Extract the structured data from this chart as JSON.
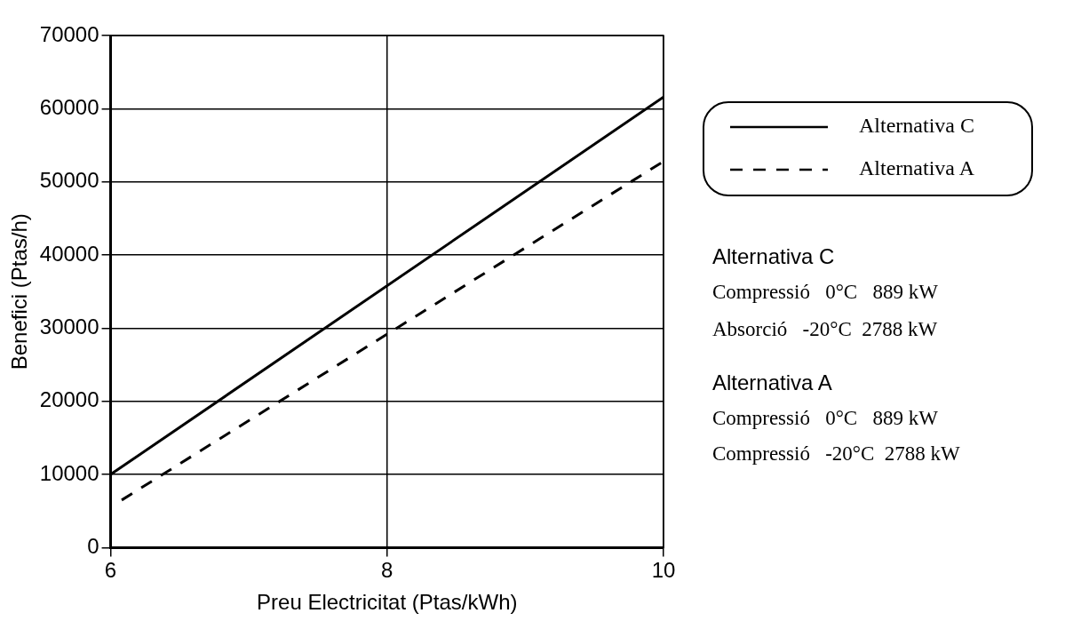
{
  "chart_data": {
    "type": "line",
    "xlabel": "Preu Electricitat (Ptas/kWh)",
    "ylabel": "Benefici (Ptas/h)",
    "xlim": [
      6,
      10
    ],
    "xticks": [
      6,
      8,
      10
    ],
    "ylim": [
      0,
      70000
    ],
    "yticks": [
      0,
      10000,
      20000,
      30000,
      40000,
      50000,
      60000,
      70000
    ],
    "grid": true,
    "legend": "right",
    "marker": "none",
    "series": [
      {
        "name": "Alternativa C",
        "color": "#000000",
        "line_style": "solid",
        "x": [
          6,
          10
        ],
        "values": [
          10000,
          61600
        ]
      },
      {
        "name": "Alternativa A",
        "color": "#000000",
        "line_style": "dashed",
        "x": [
          6.08,
          10
        ],
        "values": [
          6500,
          52800
        ]
      }
    ],
    "annotations": [
      "Alternativa C",
      "Compressió   0°C   889 kW",
      "Absorció   -20°C  2788 kW",
      "Alternativa A",
      "Compressió   0°C   889 kW",
      "Compressió   -20°C  2788 kW"
    ]
  }
}
